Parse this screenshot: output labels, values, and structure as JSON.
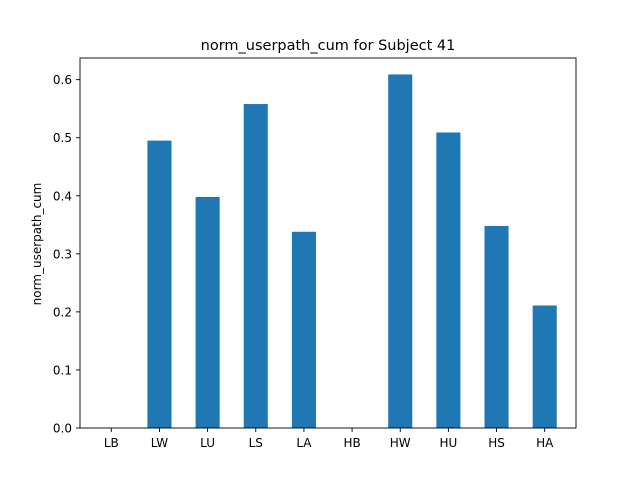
{
  "chart_data": {
    "type": "bar",
    "title": "norm_userpath_cum for Subject 41",
    "xlabel": "",
    "ylabel": "norm_userpath_cum",
    "categories": [
      "LB",
      "LW",
      "LU",
      "LS",
      "LA",
      "HB",
      "HW",
      "HU",
      "HS",
      "HA"
    ],
    "values": [
      0,
      0.495,
      0.398,
      0.558,
      0.338,
      0,
      0.609,
      0.509,
      0.348,
      0.211
    ],
    "ylim": [
      0,
      0.6373
    ],
    "yticks": [
      0.0,
      0.1,
      0.2,
      0.3,
      0.4,
      0.5,
      0.6
    ],
    "ytick_labels": [
      "0.0",
      "0.1",
      "0.2",
      "0.3",
      "0.4",
      "0.5",
      "0.6"
    ],
    "bar_color": "#1f77b4",
    "grid": false,
    "legend": "none"
  }
}
